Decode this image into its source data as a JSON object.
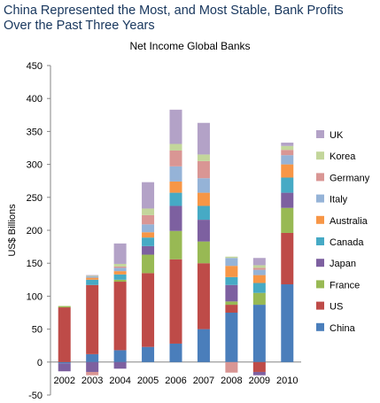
{
  "headline_line1": "China Represented the Most, and Most Stable, Bank Profits",
  "headline_line2": "Over the Past Three Years",
  "chart_data": {
    "type": "bar",
    "stacked": true,
    "title": "Net Income Global Banks",
    "xlabel": "",
    "ylabel": "US$ Billions",
    "ylim": [
      -50,
      450
    ],
    "yticks": [
      -50,
      0,
      50,
      100,
      150,
      200,
      250,
      300,
      350,
      400,
      450
    ],
    "grid": false,
    "legend_position": "right",
    "categories": [
      "2002",
      "2003",
      "2004",
      "2005",
      "2006",
      "2007",
      "2008",
      "2009",
      "2010"
    ],
    "series": [
      {
        "name": "China",
        "color": "#4a7ebb",
        "values": [
          -2,
          12,
          18,
          23,
          28,
          50,
          75,
          87,
          118
        ]
      },
      {
        "name": "US",
        "color": "#be4b48",
        "values": [
          83,
          105,
          104,
          112,
          128,
          100,
          12,
          -15,
          78
        ]
      },
      {
        "name": "France",
        "color": "#98b954",
        "values": [
          2,
          0,
          3,
          28,
          43,
          33,
          5,
          18,
          38
        ]
      },
      {
        "name": "Japan",
        "color": "#7d60a0",
        "values": [
          -12,
          -15,
          -10,
          13,
          38,
          33,
          25,
          -5,
          23
        ]
      },
      {
        "name": "Canada",
        "color": "#46aac5",
        "values": [
          0,
          8,
          8,
          13,
          20,
          21,
          12,
          15,
          23
        ]
      },
      {
        "name": "Australia",
        "color": "#f79646",
        "values": [
          0,
          3,
          5,
          8,
          17,
          20,
          17,
          12,
          20
        ]
      },
      {
        "name": "Italy",
        "color": "#95b3d7",
        "values": [
          0,
          2,
          5,
          12,
          23,
          22,
          12,
          8,
          14
        ]
      },
      {
        "name": "Germany",
        "color": "#d99694",
        "values": [
          0,
          -5,
          2,
          14,
          24,
          26,
          -16,
          3,
          8
        ]
      },
      {
        "name": "Korea",
        "color": "#c3d69b",
        "values": [
          0,
          1,
          4,
          10,
          10,
          10,
          2,
          4,
          6
        ]
      },
      {
        "name": "UK",
        "color": "#b3a2c7",
        "values": [
          0,
          1,
          31,
          40,
          52,
          48,
          0,
          11,
          5
        ]
      }
    ]
  }
}
